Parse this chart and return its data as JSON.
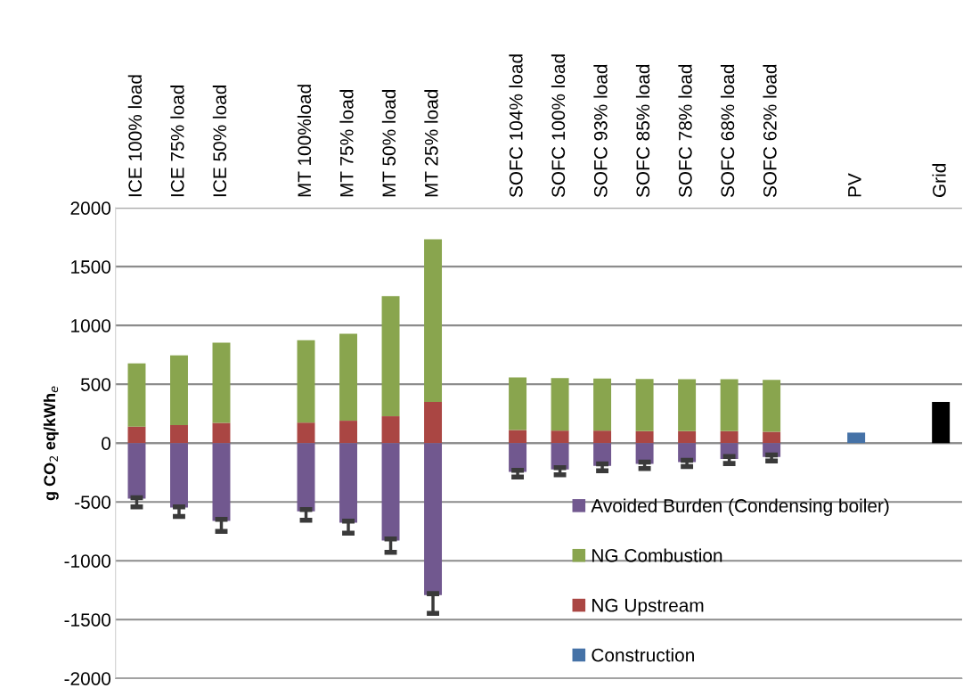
{
  "chart_data": {
    "type": "bar",
    "stacked": true,
    "ylabel": "g CO$_{2}$ eq/kWh$_{e}$",
    "categories": [
      "ICE 100% load",
      "ICE 75% load",
      "ICE 50% load",
      null,
      "MT 100%load",
      "MT 75% load",
      "MT 50% load",
      "MT 25% load",
      null,
      "SOFC 104% load",
      "SOFC 100% load",
      "SOFC 93% load",
      "SOFC 85% load",
      "SOFC 78% load",
      "SOFC 68% load",
      "SOFC 62% load",
      null,
      "PV",
      null,
      "Grid"
    ],
    "series": [
      {
        "name": "Construction",
        "color": "#4572a7",
        "values": [
          null,
          null,
          null,
          null,
          null,
          null,
          null,
          null,
          null,
          null,
          null,
          null,
          null,
          null,
          null,
          null,
          null,
          89,
          null,
          null
        ]
      },
      {
        "name": "NG Upstream",
        "color": "#aa4643",
        "values": [
          139,
          152,
          172,
          null,
          174,
          190,
          228,
          349,
          null,
          111,
          106,
          106,
          101,
          101,
          101,
          96,
          null,
          null,
          null,
          null
        ]
      },
      {
        "name": "NG Combustion",
        "color": "#89a54e",
        "values": [
          538,
          593,
          682,
          null,
          700,
          740,
          1022,
          1384,
          null,
          447,
          447,
          442,
          444,
          442,
          442,
          442,
          null,
          null,
          null,
          null
        ]
      },
      {
        "name": "Avoided Burden (Condensing boiler)",
        "color": "#71588f",
        "values": [
          -472,
          -548,
          -661,
          null,
          -580,
          -676,
          -828,
          -1293,
          null,
          -244,
          -224,
          -194,
          -177,
          -161,
          -136,
          -118,
          null,
          null,
          null,
          null
        ],
        "errors": [
          [
            -542,
            -464
          ],
          [
            -624,
            -542
          ],
          [
            -750,
            -649
          ],
          null,
          [
            -656,
            -565
          ],
          [
            -765,
            -664
          ],
          [
            -929,
            -815
          ],
          [
            -1447,
            -1280
          ],
          null,
          [
            -288,
            -232
          ],
          [
            -270,
            -209
          ],
          [
            -235,
            -177
          ],
          [
            -217,
            -161
          ],
          [
            -199,
            -146
          ],
          [
            -174,
            -114
          ],
          [
            -152,
            -101
          ],
          null,
          null,
          null,
          null
        ]
      },
      {
        "color": "#000000",
        "values": [
          null,
          null,
          null,
          null,
          null,
          null,
          null,
          null,
          null,
          null,
          null,
          null,
          null,
          null,
          null,
          null,
          null,
          null,
          null,
          349
        ]
      }
    ],
    "ylim": [
      -2000,
      2000
    ],
    "yticks": [
      -2000,
      -1500,
      -1000,
      -500,
      0,
      500,
      1000,
      1500,
      2000
    ],
    "grid": "y",
    "legend": "bottom right"
  }
}
